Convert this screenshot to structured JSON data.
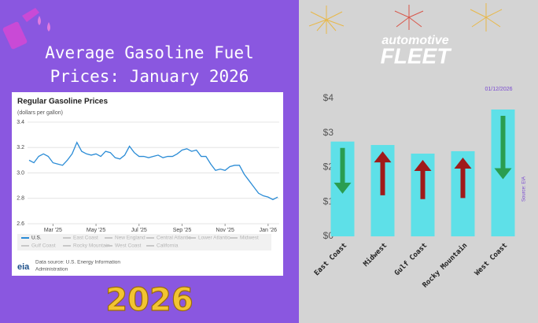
{
  "page": {
    "headline_line1": "Average Gasoline Fuel",
    "headline_line2": "Prices: January 2026",
    "year_badge": "2026",
    "logo_top": "automotive",
    "logo_bottom": "FLEET"
  },
  "chart_data": [
    {
      "type": "line",
      "title": "Regular Gasoline Prices",
      "subtitle": "(dollars per gallon)",
      "categories": [
        null,
        null,
        null,
        null,
        null,
        "Mar '25",
        null,
        null,
        null,
        null,
        null,
        null,
        null,
        null,
        "May '25",
        null,
        null,
        null,
        null,
        null,
        null,
        null,
        null,
        "Jul '25",
        null,
        null,
        null,
        null,
        null,
        null,
        null,
        null,
        "Sep '25",
        null,
        null,
        null,
        null,
        null,
        null,
        null,
        null,
        "Nov '25",
        null,
        null,
        null,
        null,
        null,
        null,
        null,
        null,
        "Jan '26",
        null,
        null
      ],
      "series": [
        {
          "name": "U.S.",
          "color": "#2b8cd6",
          "values": [
            3.1,
            3.08,
            3.13,
            3.15,
            3.13,
            3.08,
            3.07,
            3.06,
            3.1,
            3.15,
            3.24,
            3.17,
            3.15,
            3.14,
            3.15,
            3.13,
            3.17,
            3.16,
            3.12,
            3.11,
            3.14,
            3.21,
            3.16,
            3.13,
            3.13,
            3.12,
            3.13,
            3.14,
            3.12,
            3.13,
            3.13,
            3.15,
            3.18,
            3.19,
            3.17,
            3.18,
            3.13,
            3.13,
            3.07,
            3.02,
            3.03,
            3.02,
            3.05,
            3.06,
            3.06,
            2.99,
            2.94,
            2.89,
            2.84,
            2.82,
            2.81,
            2.79,
            2.81
          ]
        }
      ],
      "faded_legend": [
        "East Coast",
        "New England",
        "Central Atlantic",
        "Lower Atlantic",
        "Midwest",
        "Gulf Coast",
        "Rocky Mountain",
        "West Coast",
        "California"
      ],
      "ylim": [
        2.6,
        3.4
      ],
      "yticks": [
        {
          "value": 2.6,
          "label": "2.6"
        },
        {
          "value": 2.8,
          "label": "2.8"
        },
        {
          "value": 3.0,
          "label": "3.0"
        },
        {
          "value": 3.2,
          "label": "3.2"
        },
        {
          "value": 3.4,
          "label": "3.4"
        }
      ],
      "grid": true,
      "source": "Data source: U.S. Energy Information",
      "source_line2": "Administration",
      "logo": "eia"
    },
    {
      "type": "bar",
      "annotation": "01/12/2026",
      "source": "Source: EIA",
      "categories": [
        "East Coast",
        "Midwest",
        "Gulf Coast",
        "Rocky Mountain",
        "West Coast"
      ],
      "values": [
        2.75,
        2.65,
        2.4,
        2.47,
        3.68
      ],
      "color": "#5ee0e8",
      "arrows": [
        "down",
        "up",
        "up",
        "up",
        "down"
      ],
      "ylim": [
        0,
        4
      ],
      "yticks": [
        {
          "value": 0,
          "label": "$0"
        },
        {
          "value": 1,
          "label": "$1"
        },
        {
          "value": 2,
          "label": "$2"
        },
        {
          "value": 3,
          "label": "$3"
        },
        {
          "value": 4,
          "label": "$4"
        }
      ]
    }
  ]
}
